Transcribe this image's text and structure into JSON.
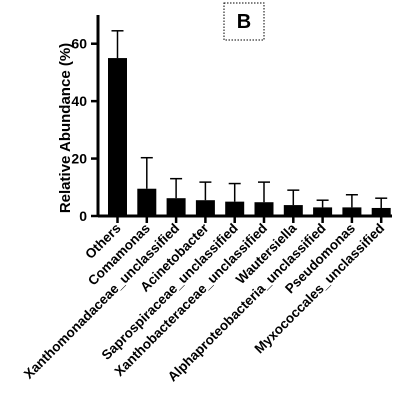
{
  "chart_data": {
    "type": "bar",
    "panel_label": "B",
    "ylabel": "Relative Abundance (%)",
    "ylim": [
      0,
      70
    ],
    "yticks": [
      0,
      20,
      40,
      60
    ],
    "categories": [
      "Others",
      "Comamonas",
      "Xanthomonadaceae_unclassified",
      "Acinetobacter",
      "Saprospiraceae_unclassified",
      "Xanthobacteraceae_unclassified",
      "Wautersiella",
      "Alphaproteobacteria_unclassified",
      "Pseudomonas",
      "Myxococcales_unclassified"
    ],
    "values": [
      55,
      9.5,
      6.2,
      5.5,
      5.0,
      4.8,
      3.8,
      3.0,
      3.0,
      2.8
    ],
    "errors": [
      9.5,
      10.8,
      6.8,
      6.3,
      6.3,
      7.0,
      5.2,
      2.5,
      4.4,
      3.4
    ]
  }
}
